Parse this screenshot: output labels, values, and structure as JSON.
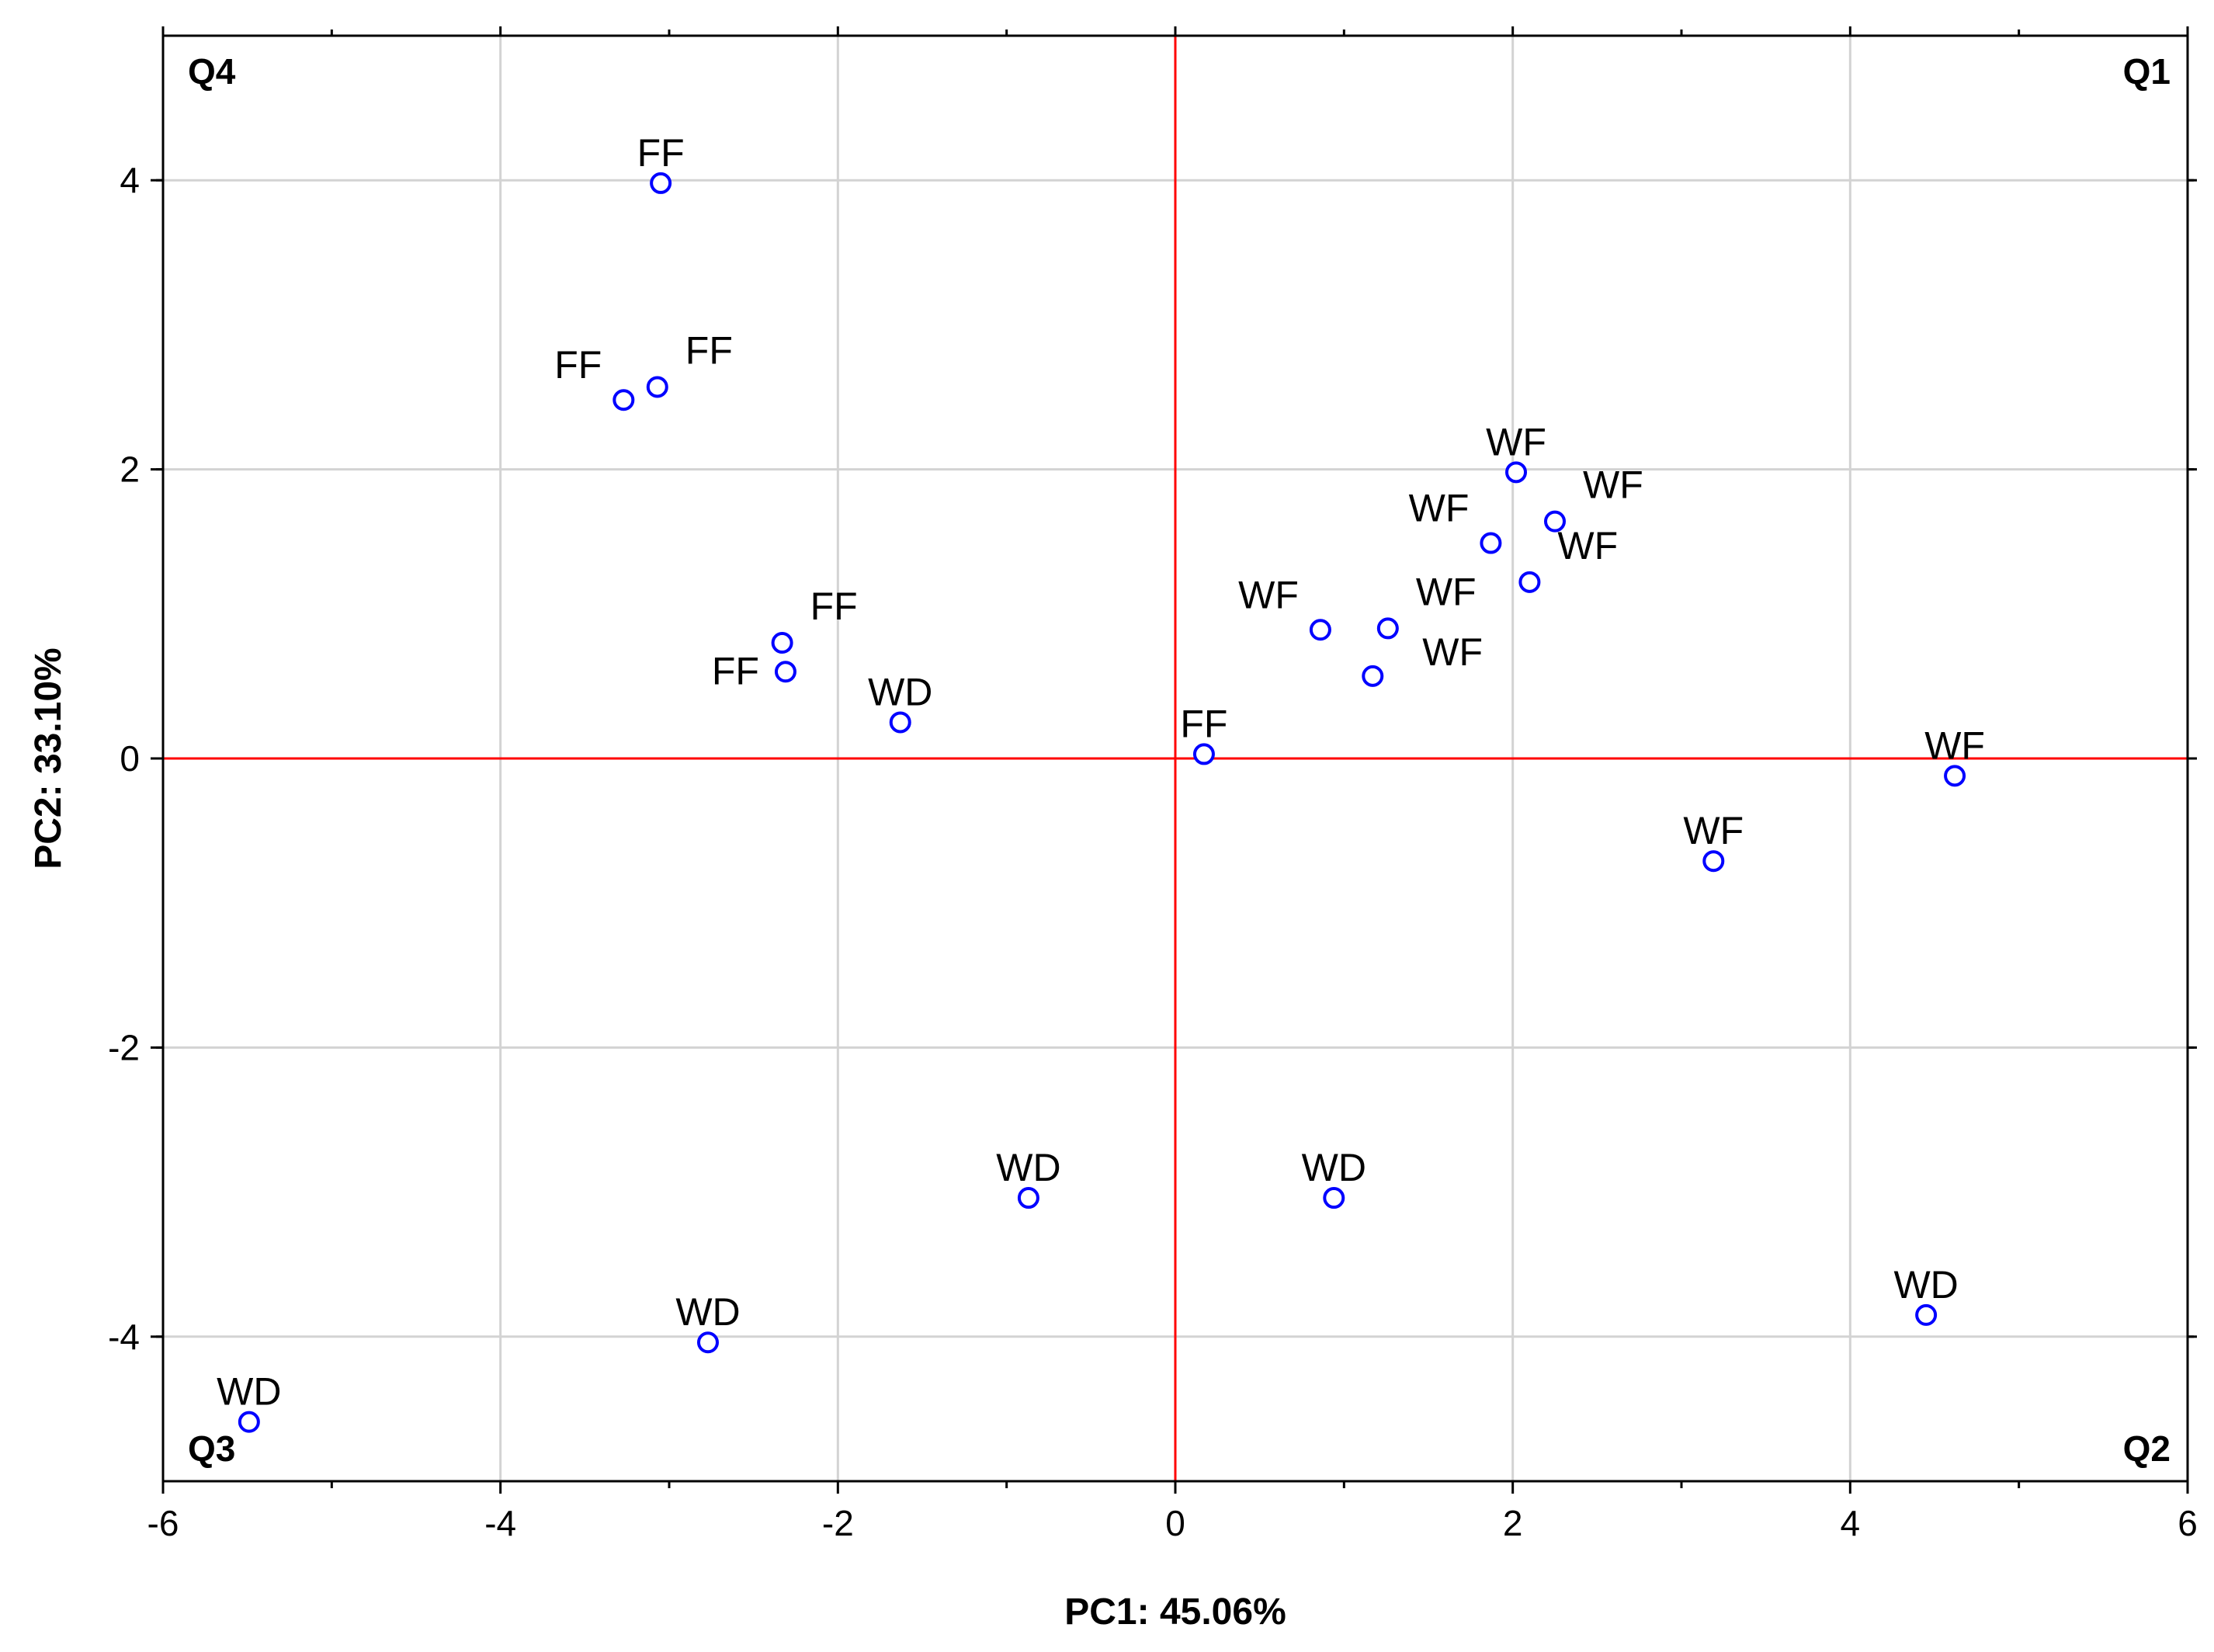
{
  "chart_data": {
    "type": "scatter",
    "title": "",
    "xlabel": "PC1: 45.06%",
    "ylabel": "PC2: 33.10%",
    "xlim": [
      -6,
      6
    ],
    "ylim": [
      -5,
      5
    ],
    "xticks": [
      -6,
      -4,
      -2,
      0,
      2,
      4,
      6
    ],
    "yticks": [
      -4,
      -2,
      0,
      2,
      4
    ],
    "xtick_labels": [
      "-6",
      "-4",
      "-2",
      "0",
      "2",
      "4",
      "6"
    ],
    "ytick_labels": [
      "-4",
      "-2",
      "0",
      "2",
      "4"
    ],
    "grid": true,
    "reference_lines": {
      "x": 0,
      "y": 0,
      "color": "#ff0000"
    },
    "quadrants": [
      {
        "name": "Q1",
        "position": "top-right"
      },
      {
        "name": "Q2",
        "position": "bottom-right"
      },
      {
        "name": "Q3",
        "position": "bottom-left"
      },
      {
        "name": "Q4",
        "position": "top-left"
      }
    ],
    "marker_color": "#0000ff",
    "points": [
      {
        "label": "FF",
        "x": -3.05,
        "y": 3.98,
        "label_pos": "above"
      },
      {
        "label": "FF",
        "x": -3.27,
        "y": 2.48,
        "label_pos": "upper-left"
      },
      {
        "label": "FF",
        "x": -3.07,
        "y": 2.57,
        "label_pos": "upper-right"
      },
      {
        "label": "FF",
        "x": -2.33,
        "y": 0.8,
        "label_pos": "upper-right"
      },
      {
        "label": "FF",
        "x": -2.31,
        "y": 0.6,
        "label_pos": "left"
      },
      {
        "label": "WD",
        "x": -1.63,
        "y": 0.25,
        "label_pos": "above"
      },
      {
        "label": "FF",
        "x": 0.17,
        "y": 0.03,
        "label_pos": "above"
      },
      {
        "label": "WF",
        "x": 0.86,
        "y": 0.89,
        "label_pos": "upper-left"
      },
      {
        "label": "WF",
        "x": 1.26,
        "y": 0.9,
        "label_pos": "upper-right"
      },
      {
        "label": "WF",
        "x": 1.17,
        "y": 0.57,
        "label_pos": "right"
      },
      {
        "label": "WF",
        "x": 1.87,
        "y": 1.49,
        "label_pos": "upper-left"
      },
      {
        "label": "WF",
        "x": 2.02,
        "y": 1.98,
        "label_pos": "above"
      },
      {
        "label": "WF",
        "x": 2.25,
        "y": 1.64,
        "label_pos": "upper-right"
      },
      {
        "label": "WF",
        "x": 2.1,
        "y": 1.22,
        "label_pos": "upper-right"
      },
      {
        "label": "WF",
        "x": 3.19,
        "y": -0.71,
        "label_pos": "above"
      },
      {
        "label": "WF",
        "x": 4.62,
        "y": -0.12,
        "label_pos": "above"
      },
      {
        "label": "WD",
        "x": -0.87,
        "y": -3.04,
        "label_pos": "above"
      },
      {
        "label": "WD",
        "x": 0.94,
        "y": -3.04,
        "label_pos": "above"
      },
      {
        "label": "WD",
        "x": -2.77,
        "y": -4.04,
        "label_pos": "above"
      },
      {
        "label": "WD",
        "x": -5.49,
        "y": -4.59,
        "label_pos": "above"
      },
      {
        "label": "WD",
        "x": 4.45,
        "y": -3.85,
        "label_pos": "above"
      }
    ]
  }
}
